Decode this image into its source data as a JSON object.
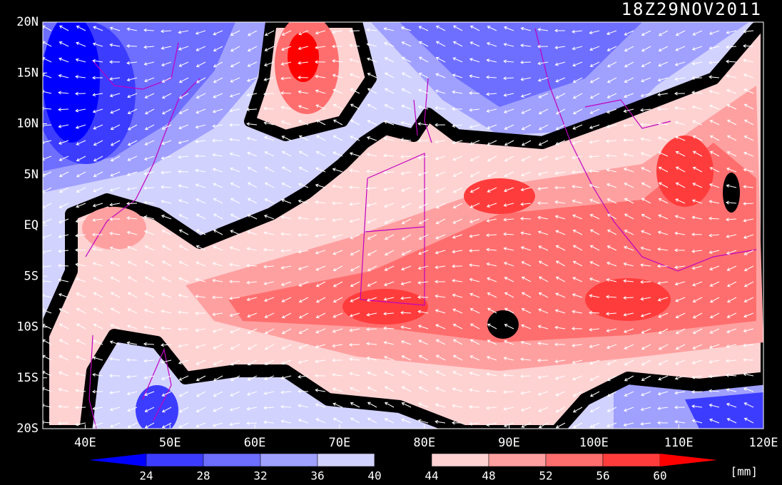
{
  "timestamp": "18Z29NOV2011",
  "map": {
    "lon_range": [
      35,
      120
    ],
    "lat_range": [
      -20,
      20
    ],
    "lon_ticks": [
      {
        "value": 40,
        "label": "40E"
      },
      {
        "value": 50,
        "label": "50E"
      },
      {
        "value": 60,
        "label": "60E"
      },
      {
        "value": 70,
        "label": "70E"
      },
      {
        "value": 80,
        "label": "80E"
      },
      {
        "value": 90,
        "label": "90E"
      },
      {
        "value": 100,
        "label": "100E"
      },
      {
        "value": 110,
        "label": "110E"
      },
      {
        "value": 120,
        "label": "120E"
      }
    ],
    "lat_ticks": [
      {
        "value": 20,
        "label": "20N"
      },
      {
        "value": 15,
        "label": "15N"
      },
      {
        "value": 10,
        "label": "10N"
      },
      {
        "value": 5,
        "label": "5N"
      },
      {
        "value": 0,
        "label": "EQ"
      },
      {
        "value": -5,
        "label": "5S"
      },
      {
        "value": -10,
        "label": "10S"
      },
      {
        "value": -15,
        "label": "15S"
      },
      {
        "value": -20,
        "label": "20S"
      }
    ]
  },
  "colorbar": {
    "levels": [
      24,
      28,
      32,
      36,
      40,
      44,
      48,
      52,
      56,
      60
    ],
    "unit": "[mm]",
    "colors": [
      "#0000ff",
      "#3c3cff",
      "#6e6eff",
      "#a0a0ff",
      "#d2d2ff",
      "#000000",
      "#ffd2d2",
      "#ffa0a0",
      "#ff6e6e",
      "#ff3c3c",
      "#ff0000"
    ]
  }
}
